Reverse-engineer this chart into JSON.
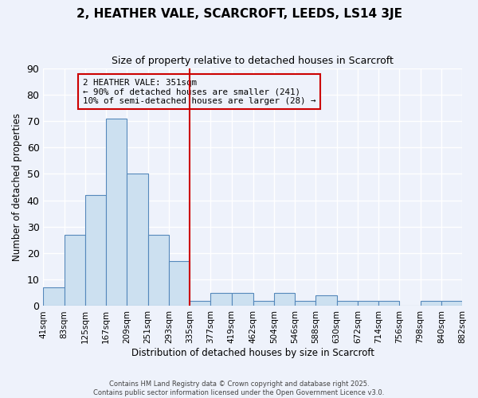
{
  "title": "2, HEATHER VALE, SCARCROFT, LEEDS, LS14 3JE",
  "subtitle": "Size of property relative to detached houses in Scarcroft",
  "xlabel": "Distribution of detached houses by size in Scarcroft",
  "ylabel": "Number of detached properties",
  "bar_values": [
    7,
    27,
    42,
    71,
    50,
    27,
    17,
    2,
    5,
    5,
    2,
    5,
    2,
    4,
    2,
    2,
    2,
    0,
    2,
    2
  ],
  "bin_edges": [
    41,
    83,
    125,
    167,
    209,
    251,
    293,
    335,
    377,
    419,
    462,
    504,
    546,
    588,
    630,
    672,
    714,
    756,
    798,
    840,
    882
  ],
  "bin_labels": [
    "41sqm",
    "83sqm",
    "125sqm",
    "167sqm",
    "209sqm",
    "251sqm",
    "293sqm",
    "335sqm",
    "377sqm",
    "419sqm",
    "462sqm",
    "504sqm",
    "546sqm",
    "588sqm",
    "630sqm",
    "672sqm",
    "714sqm",
    "756sqm",
    "798sqm",
    "840sqm",
    "882sqm"
  ],
  "vline_x": 335,
  "vline_color": "#cc0000",
  "bar_face_color": "#cce0f0",
  "bar_edge_color": "#5588bb",
  "annotation_title": "2 HEATHER VALE: 351sqm",
  "annotation_line1": "← 90% of detached houses are smaller (241)",
  "annotation_line2": "10% of semi-detached houses are larger (28) →",
  "annotation_box_color": "#cc0000",
  "ylim": [
    0,
    90
  ],
  "yticks": [
    0,
    10,
    20,
    30,
    40,
    50,
    60,
    70,
    80,
    90
  ],
  "footer1": "Contains HM Land Registry data © Crown copyright and database right 2025.",
  "footer2": "Contains public sector information licensed under the Open Government Licence v3.0.",
  "bg_color": "#eef2fb",
  "grid_color": "#ffffff"
}
